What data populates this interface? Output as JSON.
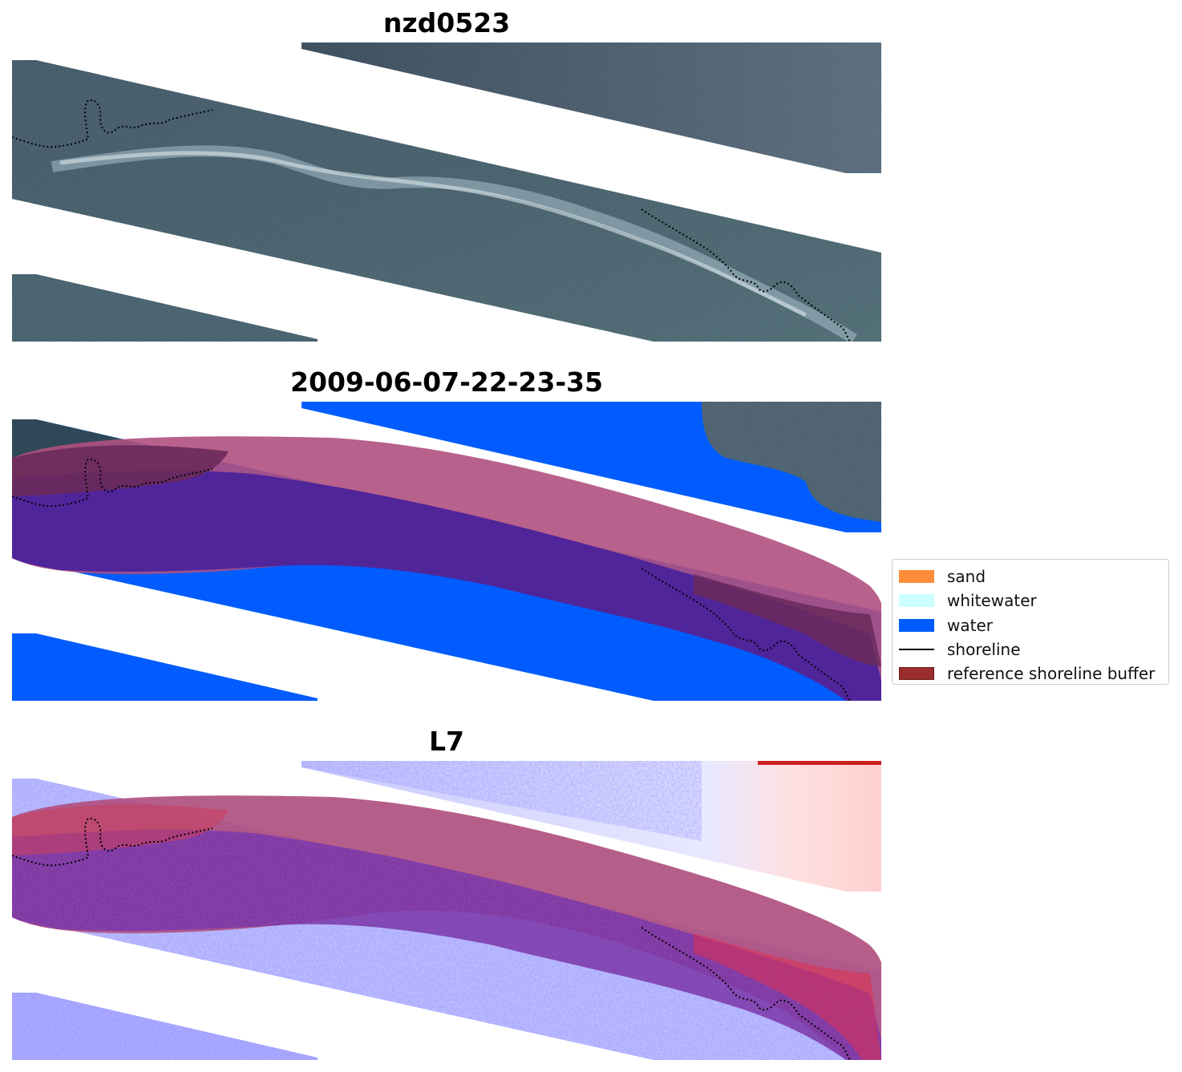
{
  "panels": [
    {
      "title": "nzd0523"
    },
    {
      "title": "2009-06-07-22-23-35"
    },
    {
      "title": "L7"
    }
  ],
  "legend": {
    "items": [
      {
        "label": "sand",
        "color": "#ff8c3a",
        "kind": "patch"
      },
      {
        "label": "whitewater",
        "color": "#ccffff",
        "kind": "patch"
      },
      {
        "label": "water",
        "color": "#005cff",
        "kind": "patch"
      },
      {
        "label": "shoreline",
        "color": "#000000",
        "kind": "line"
      },
      {
        "label": "reference shoreline buffer",
        "color": "#9b2d2d",
        "kind": "patch"
      }
    ]
  },
  "colors": {
    "imagery_dark": "#2c4150",
    "imagery_mid": "#3a5764",
    "water_class": "#005cff",
    "buffer_overlay": "#b05080",
    "classified_overlap": "#51259a",
    "index_low": "#6a6aff",
    "index_high": "#e04050"
  }
}
